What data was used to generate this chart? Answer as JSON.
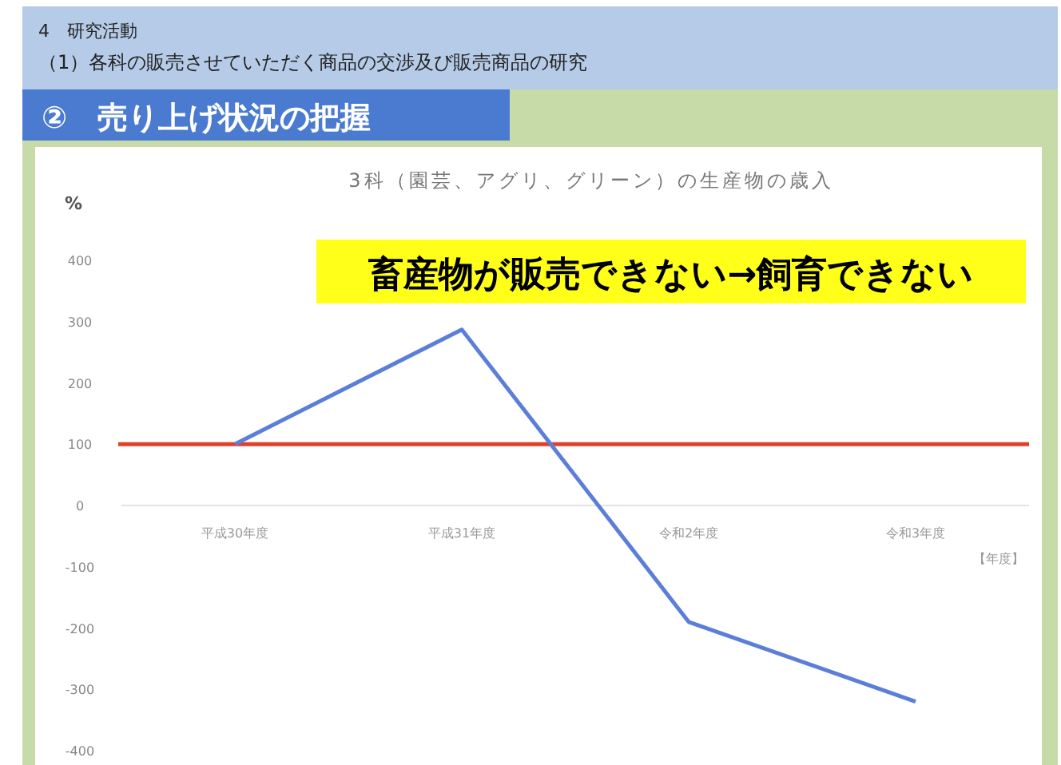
{
  "chart_data": {
    "type": "line",
    "title": "3科（園芸、アグリ、グリーン）の生産物の歳入",
    "xlabel": "【年度】",
    "ylabel": "%",
    "categories": [
      "平成30年度",
      "平成31年度",
      "令和2年度",
      "令和3年度"
    ],
    "series": [
      {
        "color": "#5b7fd9",
        "values": [
          100,
          287,
          -190,
          -320
        ]
      }
    ],
    "ylim": [
      -400,
      400
    ],
    "yticks": [
      400,
      300,
      200,
      100,
      0,
      -100,
      -200,
      -300,
      -400
    ],
    "ref_lines": [
      {
        "axis": "y",
        "value": 100,
        "color": "#e0402a"
      }
    ],
    "annotations": [
      "4　研究活動",
      "（1）各科の販売させていただく商品の交渉及び販売商品の研究",
      "②　売り上げ状況の把握",
      "畜産物が販売できない→飼育できない"
    ],
    "marker": "none",
    "line_style": "solid"
  }
}
